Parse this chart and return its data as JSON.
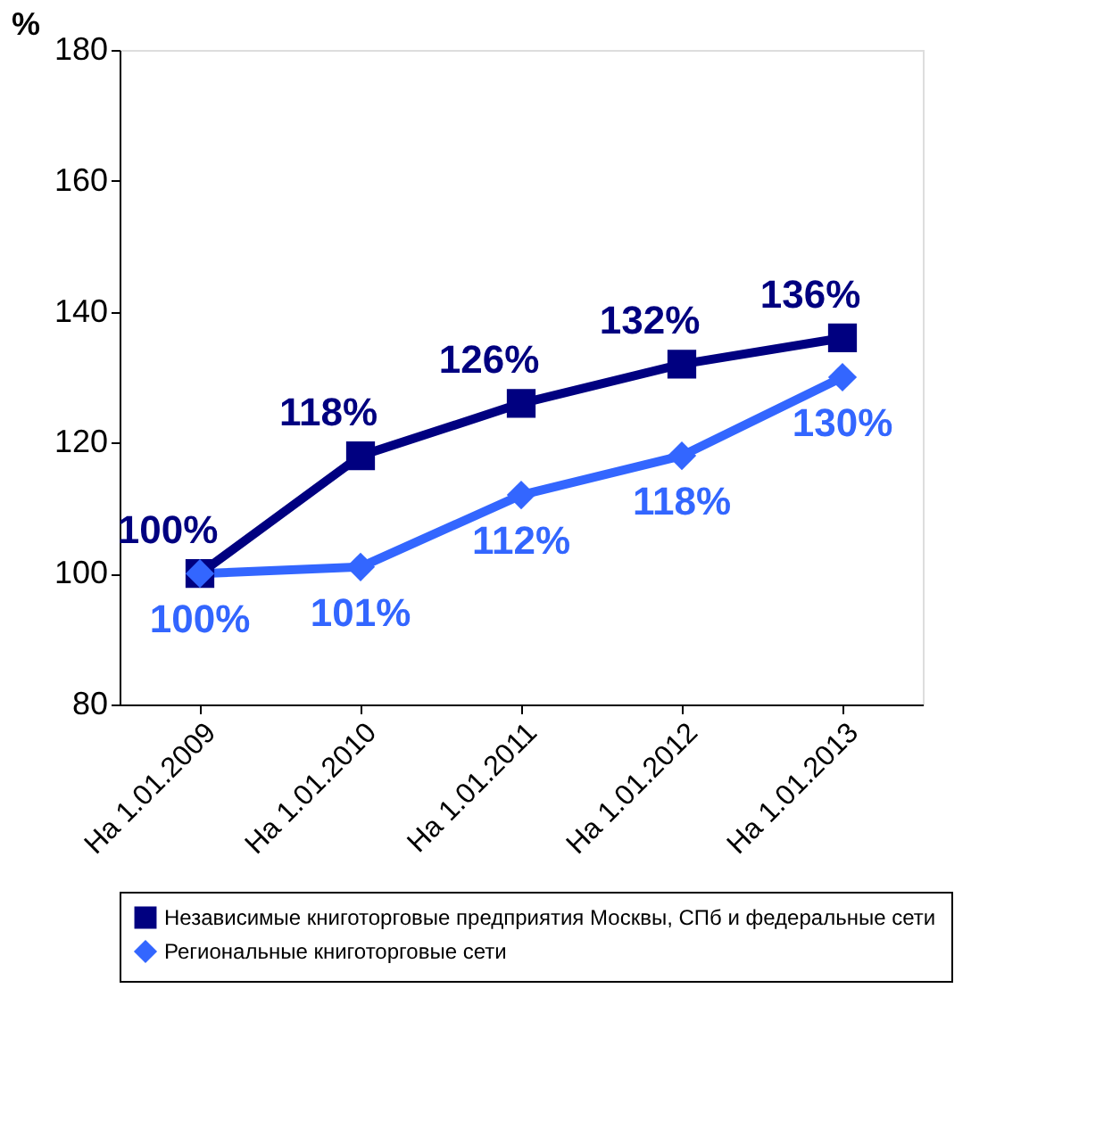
{
  "chart_data": {
    "type": "line",
    "ylabel": "%",
    "categories": [
      "На 1.01.2009",
      "На 1.01.2010",
      "На 1.01.2011",
      "На 1.01.2012",
      "На 1.01.2013"
    ],
    "series": [
      {
        "name": "Независимые книготорговые предприятия Москвы, СПб и федеральные сети",
        "color": "#000080",
        "marker": "square",
        "values": [
          100,
          118,
          126,
          132,
          136
        ],
        "value_labels": [
          "100%",
          "118%",
          "126%",
          "132%",
          "136%"
        ]
      },
      {
        "name": "Региональные книготорговые сети",
        "color": "#3366ff",
        "marker": "diamond",
        "values": [
          100,
          101,
          112,
          118,
          130
        ],
        "value_labels": [
          "100%",
          "101%",
          "112%",
          "118%",
          "130%"
        ]
      }
    ],
    "ylim": [
      80,
      180
    ],
    "yticks": [
      80,
      100,
      120,
      140,
      160,
      180
    ],
    "grid": false,
    "legend": "bottom",
    "line_style": "solid"
  }
}
